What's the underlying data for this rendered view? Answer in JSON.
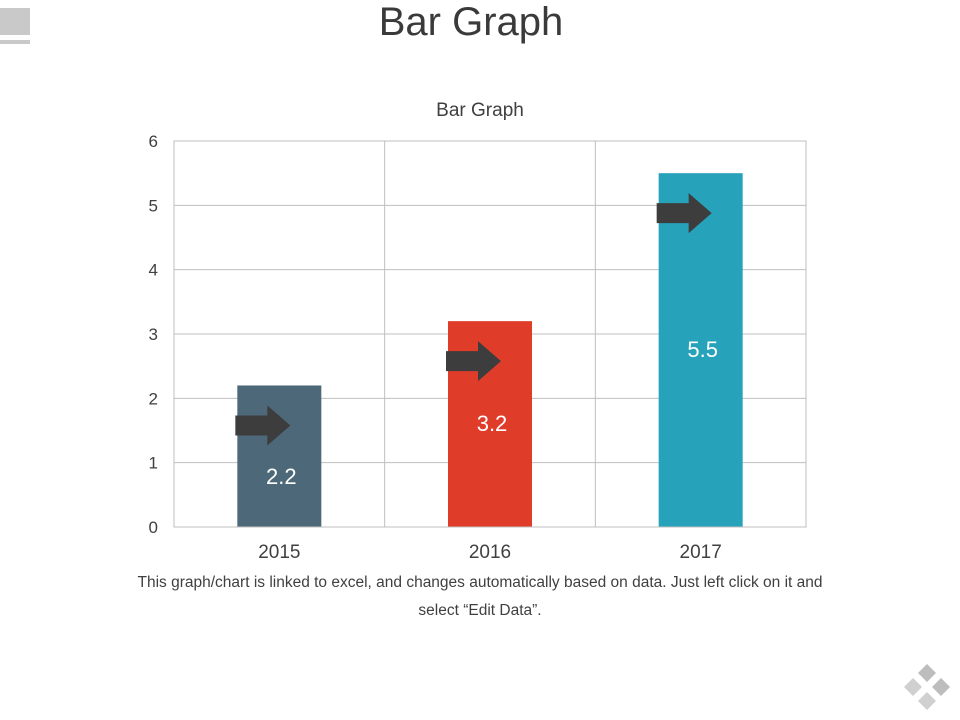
{
  "slide": {
    "title": "Bar Graph",
    "caption_line1": "This graph/chart is linked to excel, and changes automatically based on data. Just left click on it and",
    "caption_line2": "select “Edit Data”."
  },
  "chart_data": {
    "type": "bar",
    "title": "Bar Graph",
    "xlabel": "",
    "ylabel": "",
    "categories": [
      "2015",
      "2016",
      "2017"
    ],
    "values": [
      2.2,
      3.2,
      5.5
    ],
    "data_labels": [
      "2.2",
      "3.2",
      "5.5"
    ],
    "bar_colors": [
      "#4d6878",
      "#e03c2a",
      "#26a2bb"
    ],
    "ylim": [
      0,
      6
    ],
    "yticks": [
      "0",
      "1",
      "2",
      "3",
      "4",
      "5",
      "6"
    ],
    "grid": true,
    "arrow_markers": true
  },
  "colors": {
    "arrow": "#3d3d3d",
    "grid": "#bfbfbf",
    "label_text": "#ffffff",
    "accent_gray": "#c9c9c9"
  },
  "icons": [
    "corner-block",
    "logo-icon",
    "arrow-right-icon"
  ]
}
